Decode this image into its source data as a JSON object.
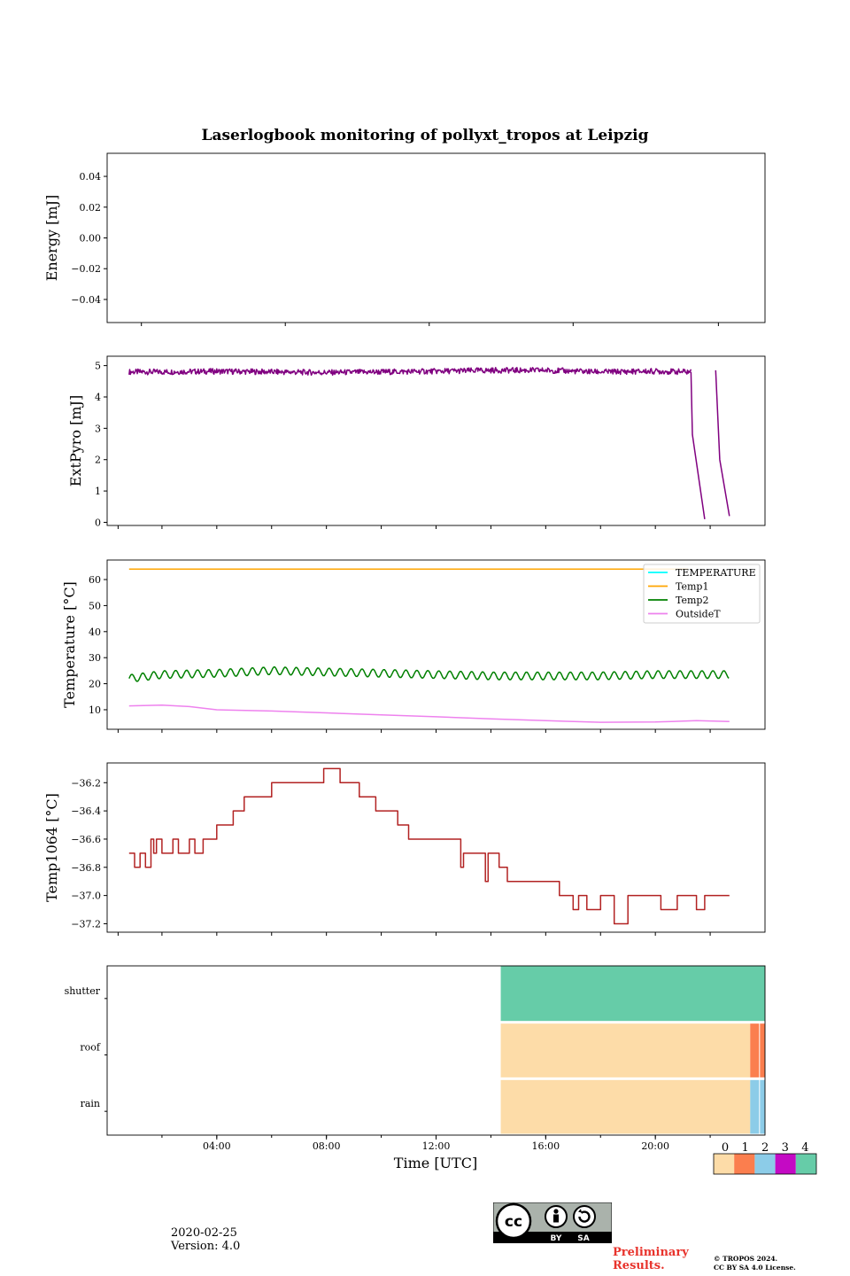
{
  "chart_data": {
    "type": "line",
    "title": "Laserlogbook monitoring of pollyxt_tropos at Leipzig",
    "xlabel": "Time [UTC]",
    "x_ticks_minor_hours": [
      2,
      4,
      6,
      8,
      10,
      12,
      14,
      16,
      18,
      20,
      22
    ],
    "x_tick_labels": [
      "04:00",
      "08:00",
      "12:00",
      "16:00",
      "20:00"
    ],
    "xlim_hours": [
      0,
      24
    ],
    "panels": [
      {
        "id": "energy",
        "ylabel": "Energy [mJ]",
        "ylim": [
          -0.055,
          0.055
        ],
        "y_ticks": [
          0.04,
          0.02,
          0.0,
          -0.02,
          -0.04
        ],
        "y_tick_labels": [
          "0.04",
          "0.02",
          "0.00",
          "−0.02",
          "−0.04"
        ],
        "series": []
      },
      {
        "id": "extpyro",
        "ylabel": "ExtPyro [mJ]",
        "ylim": [
          -0.1,
          5.3
        ],
        "y_ticks": [
          0,
          1,
          2,
          3,
          4,
          5
        ],
        "y_tick_labels": [
          "0",
          "1",
          "2",
          "3",
          "4",
          "5"
        ],
        "series": [
          {
            "name": "ExtPyro",
            "color": "#800080",
            "noisy": 0.09,
            "x": [
              0.8,
              2,
              4,
              6,
              8,
              10,
              12,
              14,
              16,
              18,
              20,
              21.3
            ],
            "y": [
              4.8,
              4.8,
              4.82,
              4.8,
              4.78,
              4.8,
              4.82,
              4.85,
              4.85,
              4.8,
              4.82,
              4.8
            ]
          },
          {
            "name": "ExtPyro drop 1",
            "color": "#800080",
            "x": [
              21.3,
              21.35,
              21.8
            ],
            "y": [
              4.8,
              2.8,
              0.1
            ]
          },
          {
            "name": "ExtPyro drop 2",
            "color": "#800080",
            "x": [
              22.2,
              22.35,
              22.7
            ],
            "y": [
              4.85,
              2.0,
              0.2
            ]
          }
        ]
      },
      {
        "id": "temperature",
        "ylabel": "Temperature [°C]",
        "ylim": [
          2.5,
          67.5
        ],
        "y_ticks": [
          10,
          20,
          30,
          40,
          50,
          60
        ],
        "y_tick_labels": [
          "10",
          "20",
          "30",
          "40",
          "50",
          "60"
        ],
        "legend": {
          "placement": "top-right",
          "entries": [
            {
              "name": "TEMPERATURE",
              "color": "#00ffff"
            },
            {
              "name": "Temp1",
              "color": "#ffa500"
            },
            {
              "name": "Temp2",
              "color": "#008000"
            },
            {
              "name": "OutsideT",
              "color": "#ee82ee"
            }
          ]
        },
        "series": [
          {
            "name": "Temp1",
            "color": "#ffa500",
            "x": [
              0.8,
              21.2
            ],
            "y": [
              64,
              64
            ]
          },
          {
            "name": "Temp2",
            "color": "#008000",
            "oscillate": {
              "amp": 1.5,
              "period_h": 0.4
            },
            "x": [
              0.8,
              2,
              4,
              6,
              8,
              10,
              12,
              14,
              16,
              18,
              20,
              22.7
            ],
            "y": [
              22,
              23.5,
              24,
              25,
              24.5,
              24,
              23.5,
              23,
              23,
              23,
              23.5,
              23.5
            ]
          },
          {
            "name": "OutsideT",
            "color": "#ee82ee",
            "x": [
              0.8,
              2,
              3,
              4,
              6,
              8,
              10,
              12,
              14,
              16,
              18,
              20,
              21.5,
              22.7
            ],
            "y": [
              11.5,
              11.8,
              11.2,
              10,
              9.5,
              8.8,
              8,
              7.3,
              6.5,
              5.8,
              5.2,
              5.3,
              5.8,
              5.5
            ]
          }
        ]
      },
      {
        "id": "temp1064",
        "ylabel": "Temp1064 [°C]",
        "ylim": [
          -37.26,
          -36.06
        ],
        "y_ticks": [
          -36.2,
          -36.4,
          -36.6,
          -36.8,
          -37.0,
          -37.2
        ],
        "y_tick_labels": [
          "−36.2",
          "−36.4",
          "−36.6",
          "−36.8",
          "−37.0",
          "−37.2"
        ],
        "series": [
          {
            "name": "Temp1064",
            "color": "#b22222",
            "step": true,
            "x": [
              0.8,
              1.0,
              1.2,
              1.4,
              1.6,
              1.7,
              1.8,
              2.0,
              2.2,
              2.4,
              2.6,
              3.0,
              3.2,
              3.5,
              3.7,
              4.0,
              4.2,
              4.6,
              5.0,
              5.4,
              6.0,
              7.0,
              7.8,
              7.9,
              8.5,
              8.8,
              9.2,
              9.6,
              9.8,
              10.2,
              10.6,
              11.0,
              11.6,
              12.0,
              12.3,
              12.9,
              13.0,
              13.2,
              13.8,
              13.9,
              14.3,
              14.6,
              15.2,
              16.0,
              16.5,
              16.8,
              17.0,
              17.2,
              17.5,
              18.0,
              18.2,
              18.5,
              19.0,
              20.0,
              20.2,
              20.8,
              21.3,
              21.5,
              21.8,
              22.7
            ],
            "y": [
              -36.7,
              -36.8,
              -36.7,
              -36.8,
              -36.6,
              -36.7,
              -36.6,
              -36.7,
              -36.7,
              -36.6,
              -36.7,
              -36.6,
              -36.7,
              -36.6,
              -36.6,
              -36.5,
              -36.5,
              -36.4,
              -36.3,
              -36.3,
              -36.2,
              -36.2,
              -36.2,
              -36.1,
              -36.2,
              -36.2,
              -36.3,
              -36.3,
              -36.4,
              -36.4,
              -36.5,
              -36.6,
              -36.6,
              -36.6,
              -36.6,
              -36.8,
              -36.7,
              -36.7,
              -36.9,
              -36.7,
              -36.8,
              -36.9,
              -36.9,
              -36.9,
              -37.0,
              -37.0,
              -37.1,
              -37.0,
              -37.1,
              -37.0,
              -37.0,
              -37.2,
              -37.0,
              -37.0,
              -37.1,
              -37.0,
              -37.0,
              -37.1,
              -37.0,
              -37.0
            ]
          }
        ]
      },
      {
        "id": "status",
        "type": "categorical-raster",
        "rows": [
          "shutter",
          "roof",
          "rain"
        ],
        "colorbar_ticks": [
          "0",
          "1",
          "2",
          "3",
          "4"
        ],
        "colorbar_colors": [
          "#fddca8",
          "#fb7e4e",
          "#8ccce8",
          "#c40ac4",
          "#66cca8"
        ],
        "segments": [
          {
            "row": "shutter",
            "from_h": 14.36,
            "to_h": 24,
            "value": 4
          },
          {
            "row": "roof",
            "from_h": 14.36,
            "to_h": 23.46,
            "value": 0
          },
          {
            "row": "roof",
            "from_h": 23.46,
            "to_h": 24,
            "value": 1
          },
          {
            "row": "rain",
            "from_h": 14.36,
            "to_h": 23.46,
            "value": 0
          },
          {
            "row": "rain",
            "from_h": 23.46,
            "to_h": 24,
            "value": 2
          }
        ]
      }
    ]
  },
  "footer": {
    "date": "2020-02-25",
    "version": "Version: 4.0",
    "preliminary_line1": "Preliminary",
    "preliminary_line2": "Results.",
    "copyright_line1": "© TROPOS 2024.",
    "copyright_line2": "CC BY SA 4.0 License.",
    "cc_by": "BY",
    "cc_sa": "SA"
  }
}
